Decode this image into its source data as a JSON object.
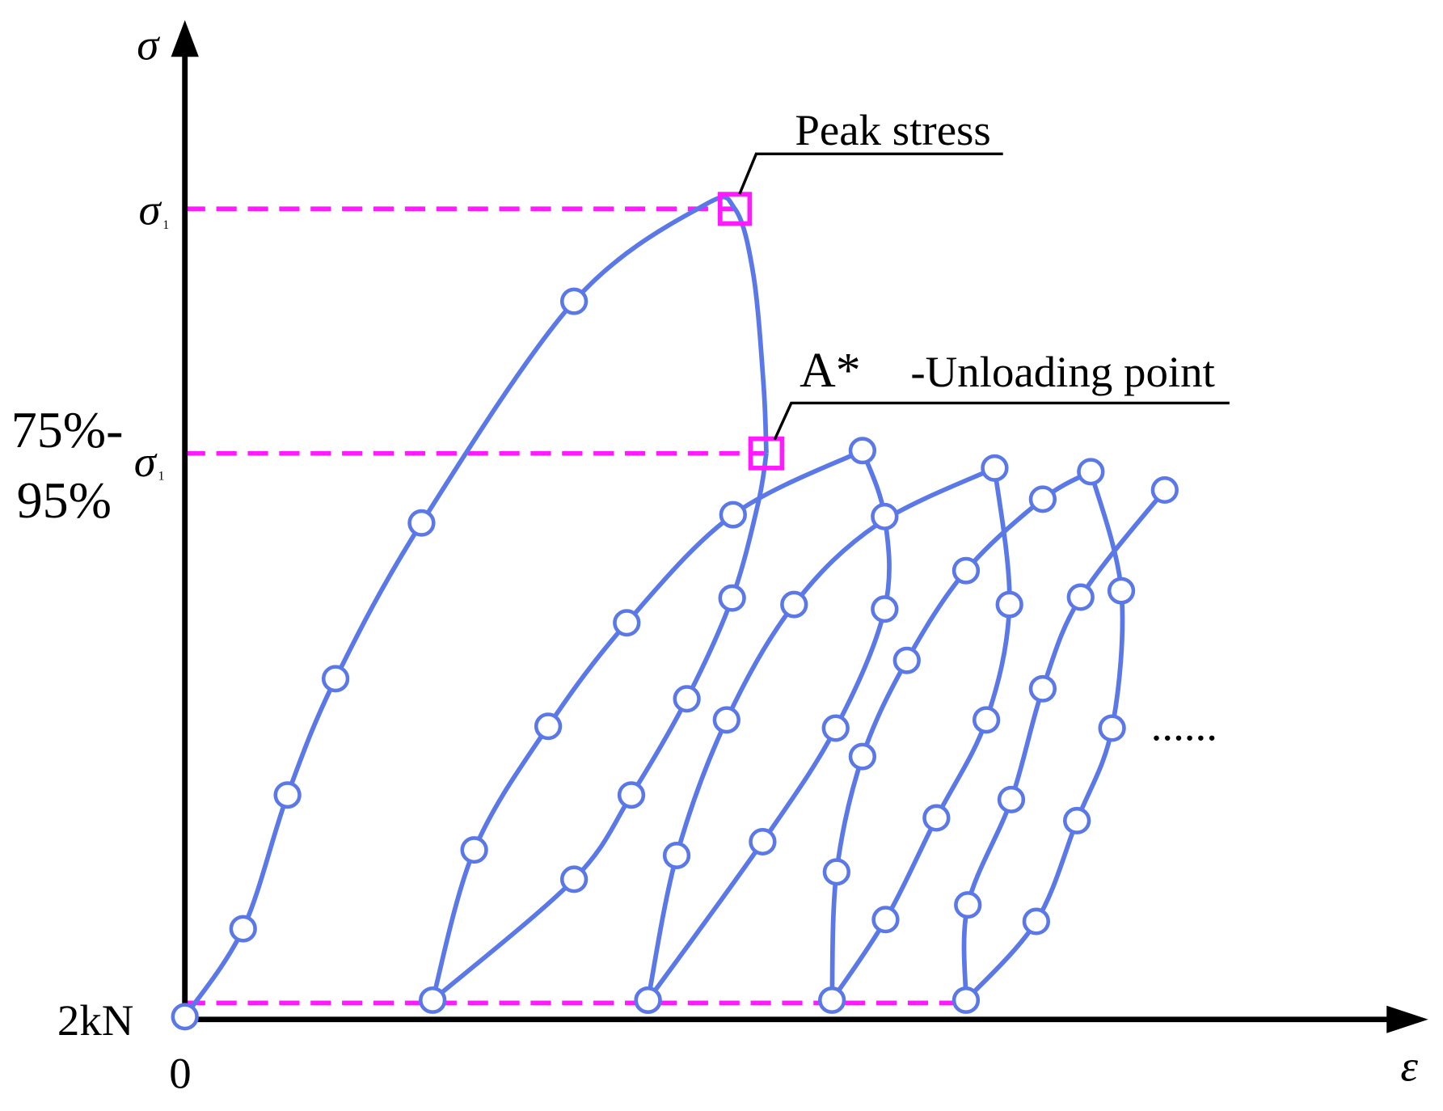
{
  "axes": {
    "y_label": "σ",
    "x_label": "ε",
    "origin": "0"
  },
  "levels": {
    "peak": {
      "symbol": "σ",
      "subscript": "1"
    },
    "unloading": {
      "prefix_line1": "75%-",
      "prefix_line2": "95%",
      "symbol": "σ",
      "subscript": "1"
    },
    "base": "2kN"
  },
  "annotations": {
    "peak": "Peak stress",
    "unloading_marker": "A*",
    "unloading": "-Unloading point",
    "continuation": "......"
  }
}
